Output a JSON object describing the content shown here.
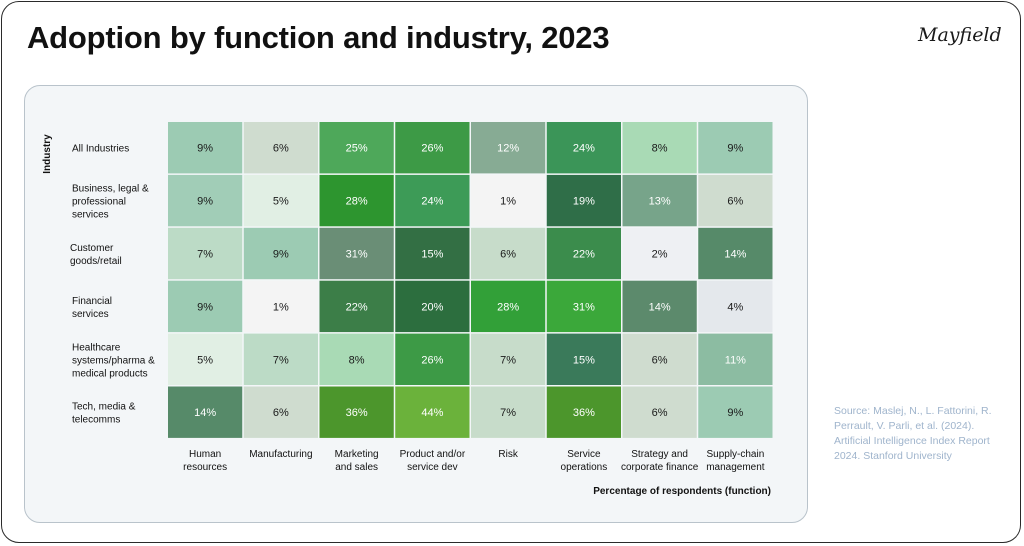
{
  "header": {
    "title": "Adoption by function and industry, 2023",
    "brand": "Mayfield"
  },
  "source_note": "Source: Maslej, N., L. Fattorini, R. Perrault, V. Parli, et al. (2024). Artificial Intelligence Index Report 2024. Stanford University",
  "chart_data": {
    "type": "heatmap",
    "title": "",
    "xlabel": "Percentage of respondents (function)",
    "ylabel": "Industry",
    "x_categories": [
      [
        "Human",
        "resources"
      ],
      [
        "Manufacturing"
      ],
      [
        "Marketing",
        "and sales"
      ],
      [
        "Product and/or",
        "service dev"
      ],
      [
        "Risk"
      ],
      [
        "Service",
        "operations"
      ],
      [
        "Strategy and",
        "corporate finance"
      ],
      [
        "Supply-chain",
        "management"
      ]
    ],
    "y_categories": [
      [
        "All Industries"
      ],
      [
        "Business, legal &",
        "professional",
        "services"
      ],
      [
        "Customer",
        "goods/retail"
      ],
      [
        "Financial",
        "services"
      ],
      [
        "Healthcare",
        "systems/pharma &",
        "medical products"
      ],
      [
        "Tech, media &",
        "telecomms"
      ]
    ],
    "values": [
      [
        9,
        6,
        25,
        26,
        12,
        24,
        8,
        9
      ],
      [
        9,
        5,
        28,
        24,
        1,
        19,
        13,
        6
      ],
      [
        7,
        9,
        31,
        15,
        6,
        22,
        2,
        14
      ],
      [
        9,
        1,
        22,
        20,
        28,
        31,
        14,
        4
      ],
      [
        5,
        7,
        8,
        26,
        7,
        15,
        6,
        11
      ],
      [
        14,
        6,
        36,
        44,
        7,
        36,
        6,
        9
      ]
    ],
    "cell_colors": [
      [
        "#9ccbb3",
        "#cfdccf",
        "#4ea85a",
        "#3d9a46",
        "#87ab94",
        "#3b9558",
        "#a9dab5",
        "#9ccbb3"
      ],
      [
        "#a1cdb7",
        "#e1efe4",
        "#2d952f",
        "#3d9b57",
        "#f4f4f4",
        "#2f6e48",
        "#77a48a",
        "#cfdccf"
      ],
      [
        "#bcdbc6",
        "#9ccbb3",
        "#6a8e76",
        "#336f44",
        "#c7dcca",
        "#3b8c4c",
        "#eef0f3",
        "#568a69"
      ],
      [
        "#9ccbb3",
        "#f4f4f4",
        "#3c7e48",
        "#2c6e3e",
        "#32a038",
        "#3ba83a",
        "#5c8a6c",
        "#e4e8ec"
      ],
      [
        "#e1efe4",
        "#bcdbc6",
        "#a9dab5",
        "#3d9a46",
        "#c7dcca",
        "#3a7a5a",
        "#cfdccf",
        "#8cbca2"
      ],
      [
        "#568a69",
        "#cfdccf",
        "#4c962c",
        "#6bb23b",
        "#c7dcca",
        "#4c962c",
        "#cfdccf",
        "#9ccbb3"
      ]
    ],
    "value_suffix": "%",
    "grid": false,
    "legend": "none"
  }
}
